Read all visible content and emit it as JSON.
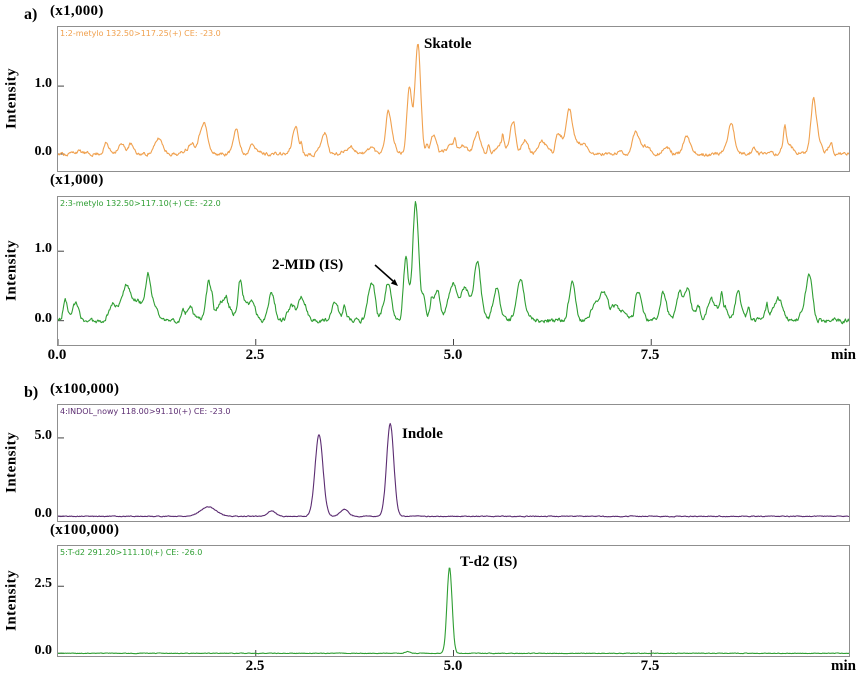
{
  "figure": {
    "panel_a_label": "a)",
    "panel_b_label": "b)",
    "ylabel": "Intensity",
    "xlabel": "min",
    "x_axis_a": [
      "0.0",
      "2.5",
      "5.0",
      "7.5"
    ],
    "x_axis_b": [
      "2.5",
      "5.0",
      "7.5"
    ]
  },
  "chart_data": [
    {
      "id": "skatole-channel",
      "type": "line",
      "panel": "a",
      "title": "1:2-metylo 132.50>117.25(+) CE: -23.0",
      "scale_label": "(x1,000)",
      "ylabel": "Intensity",
      "xlabel": "min",
      "annotation": "Skatole",
      "color": "#f0a14f",
      "x_range": [
        0,
        10
      ],
      "y_range": [
        -0.25,
        1.87
      ],
      "x_tick_values": [],
      "y_ticks": [
        {
          "v": 1.0,
          "label": "1.0"
        },
        {
          "v": 0.0,
          "label": "0.0"
        }
      ],
      "peaks": [
        {
          "x": 1.85,
          "height": 0.3,
          "width": 0.04
        },
        {
          "x": 2.25,
          "height": 0.22,
          "width": 0.04
        },
        {
          "x": 3.0,
          "height": 0.27,
          "width": 0.04
        },
        {
          "x": 3.35,
          "height": 0.2,
          "width": 0.04
        },
        {
          "x": 4.44,
          "height": 0.9,
          "width": 0.03
        },
        {
          "x": 4.55,
          "height": 1.55,
          "width": 0.035
        },
        {
          "x": 4.75,
          "height": 0.28,
          "width": 0.035
        },
        {
          "x": 5.3,
          "height": 0.32,
          "width": 0.04
        },
        {
          "x": 5.75,
          "height": 0.25,
          "width": 0.04
        },
        {
          "x": 6.45,
          "height": 0.3,
          "width": 0.04
        },
        {
          "x": 7.3,
          "height": 0.22,
          "width": 0.04
        },
        {
          "x": 7.95,
          "height": 0.26,
          "width": 0.04
        },
        {
          "x": 9.55,
          "height": 0.75,
          "width": 0.035
        }
      ],
      "noise": {
        "jitter": 0.05,
        "bumps": 60,
        "amplitude": 0.11,
        "seed": 11
      }
    },
    {
      "id": "2mid-channel",
      "type": "line",
      "panel": "a",
      "title": "2:3-metylo 132.50>117.10(+) CE: -22.0",
      "scale_label": "(x1,000)",
      "ylabel": "Intensity",
      "xlabel": "min",
      "annotation": "2-MID (IS)",
      "color": "#2f9e33",
      "x_range": [
        0,
        10
      ],
      "y_range": [
        -0.35,
        1.78
      ],
      "x_tick_values": [
        0,
        2.5,
        5,
        7.5
      ],
      "y_ticks": [
        {
          "v": 1.0,
          "label": "1.0"
        },
        {
          "v": 0.0,
          "label": "0.0"
        }
      ],
      "peaks": [
        {
          "x": 1.9,
          "height": 0.35,
          "width": 0.04
        },
        {
          "x": 2.3,
          "height": 0.3,
          "width": 0.04
        },
        {
          "x": 2.7,
          "height": 0.38,
          "width": 0.04
        },
        {
          "x": 3.1,
          "height": 0.3,
          "width": 0.04
        },
        {
          "x": 3.5,
          "height": 0.28,
          "width": 0.04
        },
        {
          "x": 3.95,
          "height": 0.42,
          "width": 0.04
        },
        {
          "x": 4.18,
          "height": 0.5,
          "width": 0.035
        },
        {
          "x": 4.4,
          "height": 0.75,
          "width": 0.03
        },
        {
          "x": 4.52,
          "height": 1.45,
          "width": 0.035
        },
        {
          "x": 4.8,
          "height": 0.35,
          "width": 0.035
        },
        {
          "x": 5.0,
          "height": 0.5,
          "width": 0.04
        },
        {
          "x": 5.3,
          "height": 0.62,
          "width": 0.04
        },
        {
          "x": 5.55,
          "height": 0.4,
          "width": 0.04
        },
        {
          "x": 5.85,
          "height": 0.45,
          "width": 0.04
        },
        {
          "x": 6.5,
          "height": 0.55,
          "width": 0.04
        },
        {
          "x": 6.9,
          "height": 0.35,
          "width": 0.04
        },
        {
          "x": 7.35,
          "height": 0.3,
          "width": 0.04
        },
        {
          "x": 7.65,
          "height": 0.35,
          "width": 0.04
        },
        {
          "x": 7.95,
          "height": 0.45,
          "width": 0.04
        },
        {
          "x": 8.25,
          "height": 0.3,
          "width": 0.04
        },
        {
          "x": 8.6,
          "height": 0.35,
          "width": 0.04
        },
        {
          "x": 9.5,
          "height": 0.5,
          "width": 0.035
        }
      ],
      "noise": {
        "jitter": 0.06,
        "bumps": 70,
        "amplitude": 0.13,
        "seed": 23
      }
    },
    {
      "id": "indole-channel",
      "type": "line",
      "panel": "b",
      "title": "4:INDOL_nowy 118.00>91.10(+) CE: -23.0",
      "scale_label": "(x100,000)",
      "ylabel": "Intensity",
      "xlabel": "min",
      "annotation": "Indole",
      "color": "#5c2d72",
      "x_range": [
        0,
        10
      ],
      "y_range": [
        -0.3,
        7.1
      ],
      "x_tick_values": [],
      "y_ticks": [
        {
          "v": 5.0,
          "label": "5.0"
        },
        {
          "v": 0.0,
          "label": "0.0"
        }
      ],
      "peaks": [
        {
          "x": 1.9,
          "height": 0.6,
          "width": 0.1
        },
        {
          "x": 2.7,
          "height": 0.35,
          "width": 0.05
        },
        {
          "x": 3.3,
          "height": 5.2,
          "width": 0.05
        },
        {
          "x": 3.62,
          "height": 0.45,
          "width": 0.05
        },
        {
          "x": 4.2,
          "height": 5.9,
          "width": 0.045
        }
      ],
      "noise": {
        "jitter": 0.05,
        "bumps": 0,
        "amplitude": 0,
        "seed": 5
      }
    },
    {
      "id": "td2-channel",
      "type": "line",
      "panel": "b",
      "title": "5:T-d2 291.20>111.10(+) CE: -26.0",
      "scale_label": "(x100,000)",
      "ylabel": "Intensity",
      "xlabel": "min",
      "annotation": "T-d2 (IS)",
      "color": "#2f9e33",
      "x_range": [
        0,
        10
      ],
      "y_range": [
        -0.1,
        4.0
      ],
      "x_tick_values": [
        2.5,
        5,
        7.5
      ],
      "y_ticks": [
        {
          "v": 2.5,
          "label": "2.5"
        },
        {
          "v": 0.0,
          "label": "0.0"
        }
      ],
      "peaks": [
        {
          "x": 4.42,
          "height": 0.07,
          "width": 0.03
        },
        {
          "x": 4.95,
          "height": 3.2,
          "width": 0.032
        }
      ],
      "noise": {
        "jitter": 0.02,
        "bumps": 0,
        "amplitude": 0,
        "seed": 9
      }
    }
  ]
}
